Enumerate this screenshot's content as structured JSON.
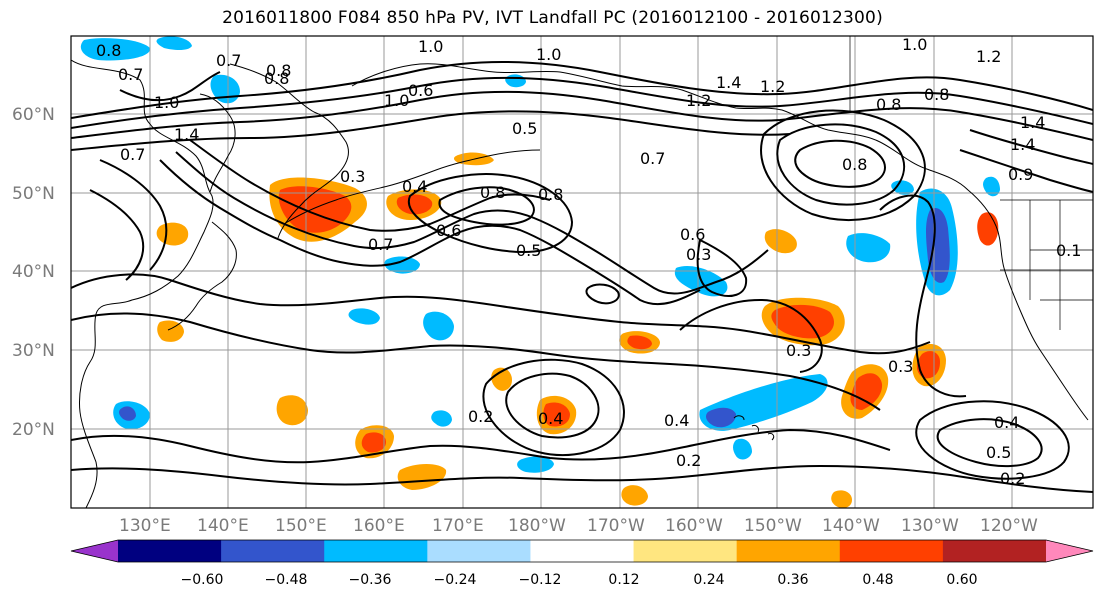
{
  "title": "2016011800 F084 850 hPa PV, IVT Landfall PC (2016012100 - 2016012300)",
  "latitude_labels": [
    "60°N",
    "50°N",
    "40°N",
    "30°N",
    "20°N"
  ],
  "longitude_labels": [
    "130°E",
    "140°E",
    "150°E",
    "160°E",
    "170°E",
    "180°W",
    "170°W",
    "160°W",
    "150°W",
    "140°W",
    "130°W",
    "120°W"
  ],
  "colorbar": {
    "ticks": [
      "−0.60",
      "−0.48",
      "−0.36",
      "−0.24",
      "−0.12",
      "0.12",
      "0.24",
      "0.36",
      "0.48",
      "0.60"
    ],
    "colors": [
      "#9933cc",
      "#000080",
      "#3355cc",
      "#00bbff",
      "#aaddff",
      "#ffffff",
      "#ffe680",
      "#ffa500",
      "#ff4000",
      "#b22222",
      "#ff88bb"
    ]
  },
  "contour_labels": [
    "0.8",
    "0.7",
    "1.0",
    "0.8",
    "1.0",
    "1.2",
    "1.0",
    "1.2",
    "1.0",
    "1.4",
    "0.8",
    "0.5",
    "1.0",
    "1.4",
    "1.4",
    "1.2",
    "0.8",
    "0.7",
    "0.9",
    "0.8",
    "0.6",
    "0.4",
    "0.8",
    "0.7",
    "0.6",
    "0.5",
    "0.3",
    "0.7",
    "0.8",
    "1.4",
    "0.7",
    "0.8",
    "0.3",
    "0.6",
    "0.3",
    "0.2",
    "0.4",
    "0.4",
    "0.2",
    "0.4",
    "0.5",
    "0.2",
    "0.3",
    "0.1"
  ],
  "shading": {
    "positive_colors": [
      "#ffa500",
      "#ff4000",
      "#b22222"
    ],
    "negative_colors": [
      "#00bbff",
      "#3355cc",
      "#aaddff"
    ]
  }
}
